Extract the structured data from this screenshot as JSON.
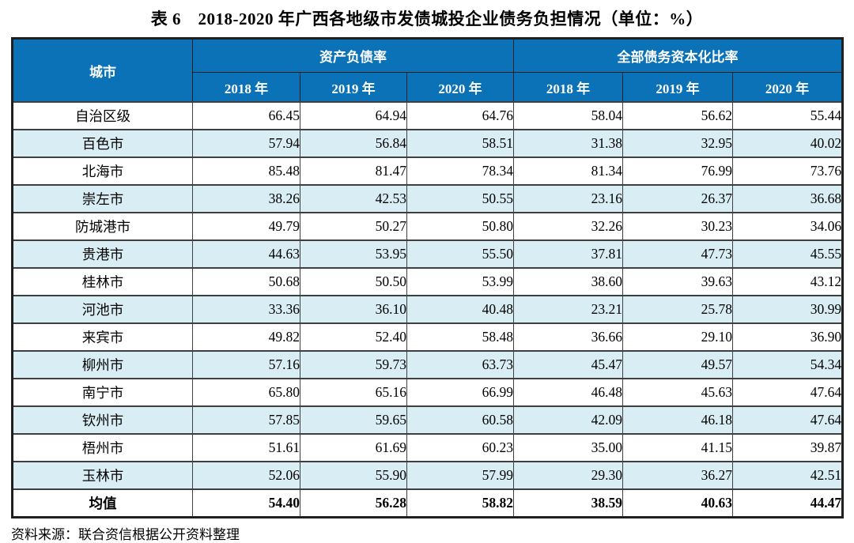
{
  "title": "表 6　2018-2020 年广西各地级市发债城投企业债务负担情况（单位：%）",
  "table": {
    "city_header": "城市",
    "group_headers": [
      "资产负债率",
      "全部债务资本化比率"
    ],
    "year_headers": [
      "2018 年",
      "2019 年",
      "2020 年",
      "2018 年",
      "2019 年",
      "2020 年"
    ],
    "rows": [
      {
        "city": "自治区级",
        "values": [
          "66.45",
          "64.94",
          "64.76",
          "58.04",
          "56.62",
          "55.44"
        ]
      },
      {
        "city": "百色市",
        "values": [
          "57.94",
          "56.84",
          "58.51",
          "31.38",
          "32.95",
          "40.02"
        ]
      },
      {
        "city": "北海市",
        "values": [
          "85.48",
          "81.47",
          "78.34",
          "81.34",
          "76.99",
          "73.76"
        ]
      },
      {
        "city": "崇左市",
        "values": [
          "38.26",
          "42.53",
          "50.55",
          "23.16",
          "26.37",
          "36.68"
        ]
      },
      {
        "city": "防城港市",
        "values": [
          "49.79",
          "50.27",
          "50.80",
          "32.26",
          "30.23",
          "34.06"
        ]
      },
      {
        "city": "贵港市",
        "values": [
          "44.63",
          "53.95",
          "55.50",
          "37.81",
          "47.73",
          "45.55"
        ]
      },
      {
        "city": "桂林市",
        "values": [
          "50.68",
          "50.50",
          "53.99",
          "38.60",
          "39.63",
          "43.12"
        ]
      },
      {
        "city": "河池市",
        "values": [
          "33.36",
          "36.10",
          "40.48",
          "23.21",
          "25.78",
          "30.99"
        ]
      },
      {
        "city": "来宾市",
        "values": [
          "49.82",
          "52.40",
          "58.48",
          "36.66",
          "29.10",
          "36.90"
        ]
      },
      {
        "city": "柳州市",
        "values": [
          "57.16",
          "59.73",
          "63.73",
          "45.47",
          "49.57",
          "54.34"
        ]
      },
      {
        "city": "南宁市",
        "values": [
          "65.80",
          "65.16",
          "66.99",
          "46.48",
          "45.63",
          "47.64"
        ]
      },
      {
        "city": "钦州市",
        "values": [
          "57.85",
          "59.65",
          "60.58",
          "42.09",
          "46.18",
          "47.64"
        ]
      },
      {
        "city": "梧州市",
        "values": [
          "51.61",
          "61.69",
          "60.23",
          "35.00",
          "41.15",
          "39.87"
        ]
      },
      {
        "city": "玉林市",
        "values": [
          "52.06",
          "55.90",
          "57.99",
          "29.30",
          "36.27",
          "42.51"
        ]
      },
      {
        "city": "均值",
        "values": [
          "54.40",
          "56.28",
          "58.82",
          "38.59",
          "40.63",
          "44.47"
        ],
        "bold": true
      }
    ]
  },
  "footer": "资料来源：联合资信根据公开资料整理",
  "colors": {
    "header_bg": "#0c72b8",
    "header_text": "#ffffff",
    "stripe_bg": "#d9edf4",
    "grid_line": "#3f3f3f",
    "frame_line": "#1f1f1f",
    "body_text": "#000000"
  }
}
